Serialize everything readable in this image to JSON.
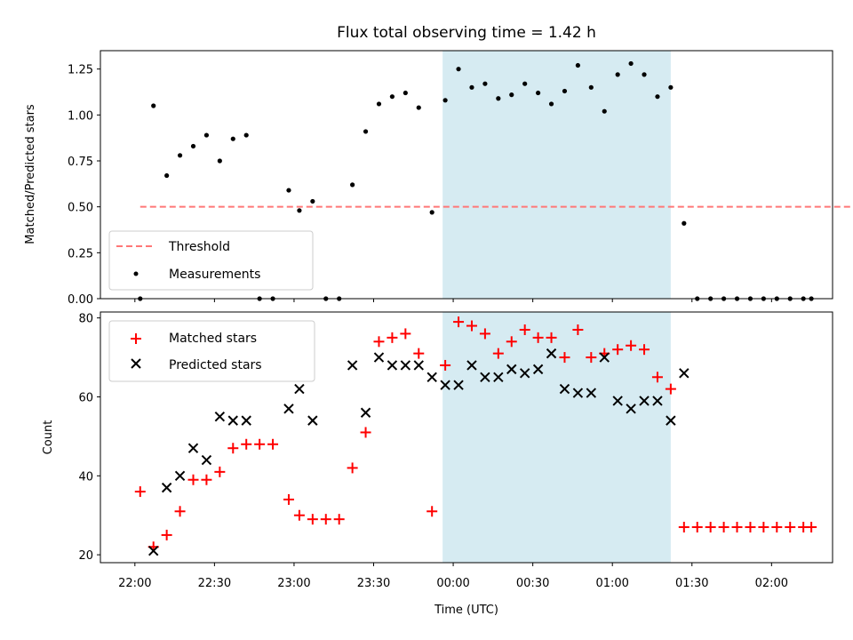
{
  "figure": {
    "title": "Flux total observing time = 1.42 h",
    "xlabel": "Time (UTC)",
    "xtick_labels": [
      "22:00",
      "22:30",
      "23:00",
      "23:30",
      "00:00",
      "00:30",
      "01:00",
      "01:30",
      "02:00"
    ]
  },
  "colors": {
    "threshold": "#ff7777",
    "measurement": "#000000",
    "matched": "#ff0000",
    "predicted": "#000000",
    "shade": "#add8e6"
  },
  "chart_data": [
    {
      "type": "scatter",
      "panel": "top",
      "ylabel": "Matched/Predicted stars",
      "ylim": [
        0,
        1.35
      ],
      "yticks": [
        0,
        0.25,
        0.5,
        0.75,
        1.0,
        1.25
      ],
      "ytick_labels": [
        "0.00",
        "0.25",
        "0.50",
        "0.75",
        "1.00",
        "1.25"
      ],
      "xlim_minutes": [
        -13,
        263
      ],
      "shaded_interval": [
        "23:56",
        "01:22"
      ],
      "legend_position": "lower left",
      "legend": [
        "Threshold",
        "Measurements"
      ],
      "threshold": {
        "name": "Threshold",
        "value": 0.5,
        "x_range": [
          "22:02",
          "02:33"
        ]
      },
      "series": [
        {
          "name": "Measurements",
          "x": [
            "22:02",
            "22:07",
            "22:12",
            "22:17",
            "22:22",
            "22:27",
            "22:32",
            "22:37",
            "22:42",
            "22:47",
            "22:52",
            "22:58",
            "23:02",
            "23:07",
            "23:12",
            "23:17",
            "23:22",
            "23:27",
            "23:32",
            "23:37",
            "23:42",
            "23:47",
            "23:52",
            "23:57",
            "00:02",
            "00:07",
            "00:12",
            "00:17",
            "00:22",
            "00:27",
            "00:32",
            "00:37",
            "00:42",
            "00:47",
            "00:52",
            "00:57",
            "01:02",
            "01:07",
            "01:12",
            "01:17",
            "01:22",
            "01:27",
            "01:32",
            "01:37",
            "01:42",
            "01:47",
            "01:52",
            "01:57",
            "02:02",
            "02:07",
            "02:12",
            "02:15"
          ],
          "y": [
            0.0,
            1.05,
            0.67,
            0.78,
            0.83,
            0.89,
            0.75,
            0.87,
            0.89,
            0.0,
            0.0,
            0.59,
            0.48,
            0.53,
            0.0,
            0.0,
            0.62,
            0.91,
            1.06,
            1.1,
            1.12,
            1.04,
            0.47,
            1.08,
            1.25,
            1.15,
            1.17,
            1.09,
            1.11,
            1.17,
            1.12,
            1.06,
            1.13,
            1.27,
            1.15,
            1.02,
            1.22,
            1.28,
            1.22,
            1.1,
            1.15,
            0.41,
            0.0,
            0.0,
            0.0,
            0.0,
            0.0,
            0.0,
            0.0,
            0.0,
            0.0,
            0.0
          ]
        }
      ]
    },
    {
      "type": "scatter",
      "panel": "bottom",
      "ylabel": "Count",
      "ylim": [
        18,
        81.5
      ],
      "yticks": [
        20,
        40,
        60,
        80
      ],
      "ytick_labels": [
        "20",
        "40",
        "60",
        "80"
      ],
      "xlim_minutes": [
        -13,
        263
      ],
      "shaded_interval": [
        "23:56",
        "01:22"
      ],
      "legend_position": "upper left",
      "legend": [
        "Matched stars",
        "Predicted stars"
      ],
      "series": [
        {
          "name": "Matched stars",
          "marker": "plus",
          "x": [
            "22:02",
            "22:07",
            "22:12",
            "22:17",
            "22:22",
            "22:27",
            "22:32",
            "22:37",
            "22:42",
            "22:47",
            "22:52",
            "22:58",
            "23:02",
            "23:07",
            "23:12",
            "23:17",
            "23:22",
            "23:27",
            "23:32",
            "23:37",
            "23:42",
            "23:47",
            "23:52",
            "23:57",
            "00:02",
            "00:07",
            "00:12",
            "00:17",
            "00:22",
            "00:27",
            "00:32",
            "00:37",
            "00:42",
            "00:47",
            "00:52",
            "00:57",
            "01:02",
            "01:07",
            "01:12",
            "01:17",
            "01:22",
            "01:27",
            "01:32",
            "01:37",
            "01:42",
            "01:47",
            "01:52",
            "01:57",
            "02:02",
            "02:07",
            "02:12",
            "02:15"
          ],
          "y": [
            36,
            22,
            25,
            31,
            39,
            39,
            41,
            47,
            48,
            48,
            48,
            34,
            30,
            29,
            29,
            29,
            42,
            51,
            74,
            75,
            76,
            71,
            31,
            68,
            79,
            78,
            76,
            71,
            74,
            77,
            75,
            75,
            70,
            77,
            70,
            71,
            72,
            73,
            72,
            65,
            62,
            27,
            27,
            27,
            27,
            27,
            27,
            27,
            27,
            27,
            27,
            27
          ]
        },
        {
          "name": "Predicted stars",
          "marker": "x",
          "x": [
            "22:07",
            "22:12",
            "22:17",
            "22:22",
            "22:27",
            "22:32",
            "22:37",
            "22:42",
            "22:58",
            "23:02",
            "23:07",
            "23:22",
            "23:27",
            "23:32",
            "23:37",
            "23:42",
            "23:47",
            "23:52",
            "23:57",
            "00:02",
            "00:07",
            "00:12",
            "00:17",
            "00:22",
            "00:27",
            "00:32",
            "00:37",
            "00:42",
            "00:47",
            "00:52",
            "00:57",
            "01:02",
            "01:07",
            "01:12",
            "01:17",
            "01:22",
            "01:27"
          ],
          "y": [
            21,
            37,
            40,
            47,
            44,
            55,
            54,
            54,
            57,
            62,
            54,
            68,
            56,
            70,
            68,
            68,
            68,
            65,
            63,
            63,
            68,
            65,
            65,
            67,
            66,
            67,
            71,
            62,
            61,
            61,
            70,
            59,
            57,
            59,
            59,
            54,
            66
          ]
        }
      ]
    }
  ]
}
